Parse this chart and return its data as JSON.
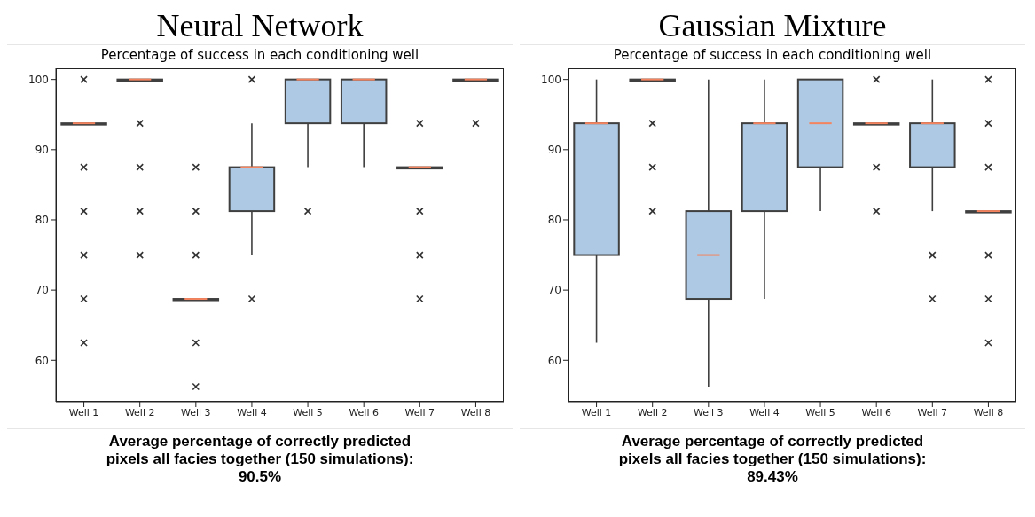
{
  "chart_data": [
    {
      "type": "box",
      "title": "Neural Network",
      "subtitle": "Percentage of success in each conditioning well",
      "categories": [
        "Well 1",
        "Well 2",
        "Well 3",
        "Well 4",
        "Well 5",
        "Well 6",
        "Well 7",
        "Well 8"
      ],
      "color": "#aec9e3",
      "marker": "cross",
      "ylim": [
        54.1,
        101.6
      ],
      "yticks": [
        60,
        70,
        80,
        90,
        100
      ],
      "boxes": [
        {
          "low": 93.75,
          "q1": 93.75,
          "median": 93.75,
          "q3": 93.75,
          "high": 93.75,
          "outliers": [
            100,
            87.5,
            81.25,
            75,
            68.75,
            62.5
          ]
        },
        {
          "low": 100,
          "q1": 100,
          "median": 100,
          "q3": 100,
          "high": 100,
          "outliers": [
            93.75,
            87.5,
            81.25,
            75
          ]
        },
        {
          "low": 68.75,
          "q1": 68.75,
          "median": 68.75,
          "q3": 68.75,
          "high": 68.75,
          "outliers": [
            87.5,
            81.25,
            75,
            62.5,
            56.25
          ]
        },
        {
          "low": 75,
          "q1": 81.25,
          "median": 87.5,
          "q3": 87.5,
          "high": 93.75,
          "outliers": [
            100,
            68.75
          ]
        },
        {
          "low": 87.5,
          "q1": 93.75,
          "median": 100,
          "q3": 100,
          "high": 100,
          "outliers": [
            81.25
          ]
        },
        {
          "low": 87.5,
          "q1": 93.75,
          "median": 100,
          "q3": 100,
          "high": 100
        },
        {
          "low": 87.5,
          "q1": 87.5,
          "median": 87.5,
          "q3": 87.5,
          "high": 87.5,
          "outliers": [
            93.75,
            81.25,
            75,
            68.75
          ]
        },
        {
          "low": 100,
          "q1": 100,
          "median": 100,
          "q3": 100,
          "high": 100,
          "outliers": [
            93.75
          ]
        }
      ],
      "annotations": [
        "Average percentage of correctly predicted pixels all facies together (150 simulations): 90.5%"
      ]
    },
    {
      "type": "box",
      "title": "Gaussian Mixture",
      "subtitle": "Percentage of success in each conditioning well",
      "categories": [
        "Well 1",
        "Well 2",
        "Well 3",
        "Well 4",
        "Well 5",
        "Well 6",
        "Well 7",
        "Well 8"
      ],
      "color": "#aec9e3",
      "marker": "cross",
      "ylim": [
        54.1,
        101.6
      ],
      "yticks": [
        60,
        70,
        80,
        90,
        100
      ],
      "boxes": [
        {
          "low": 62.5,
          "q1": 75,
          "median": 93.75,
          "q3": 93.75,
          "high": 100
        },
        {
          "low": 100,
          "q1": 100,
          "median": 100,
          "q3": 100,
          "high": 100,
          "outliers": [
            93.75,
            87.5,
            81.25
          ]
        },
        {
          "low": 56.25,
          "q1": 68.75,
          "median": 75,
          "q3": 81.25,
          "high": 100
        },
        {
          "low": 68.75,
          "q1": 81.25,
          "median": 93.75,
          "q3": 93.75,
          "high": 100
        },
        {
          "low": 81.25,
          "q1": 87.5,
          "median": 93.75,
          "q3": 100,
          "high": 100
        },
        {
          "low": 93.75,
          "q1": 93.75,
          "median": 93.75,
          "q3": 93.75,
          "high": 93.75,
          "outliers": [
            100,
            87.5,
            81.25
          ]
        },
        {
          "low": 81.25,
          "q1": 87.5,
          "median": 93.75,
          "q3": 93.75,
          "high": 100,
          "outliers": [
            75,
            68.75
          ]
        },
        {
          "low": 81.25,
          "q1": 81.25,
          "median": 81.25,
          "q3": 81.25,
          "high": 81.25,
          "outliers": [
            100,
            93.75,
            87.5,
            75,
            68.75,
            62.5
          ]
        }
      ],
      "annotations": [
        "Average percentage of correctly predicted pixels all facies together (150 simulations): 89.43%"
      ]
    }
  ]
}
